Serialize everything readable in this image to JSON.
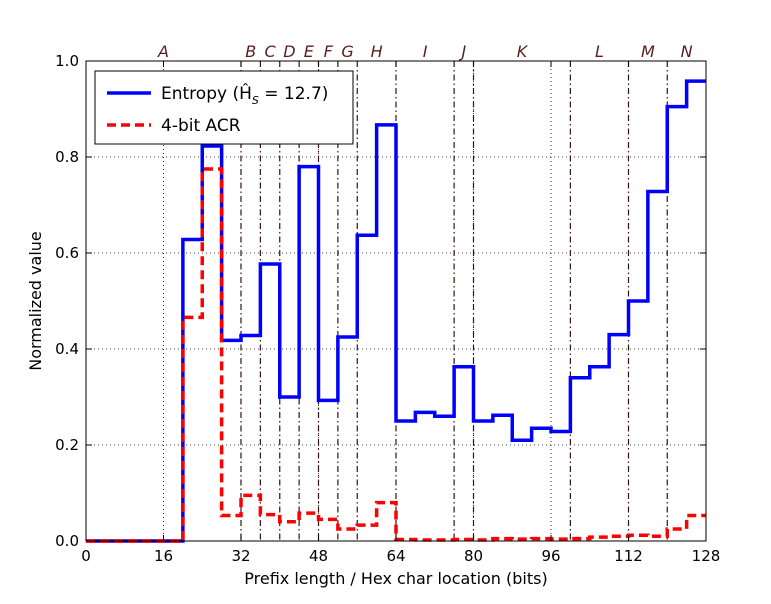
{
  "chart_data": {
    "type": "line",
    "title": "",
    "xlabel": "Prefix length / Hex char location (bits)",
    "ylabel": "Normalized value",
    "xlim": [
      0,
      128
    ],
    "ylim": [
      0,
      1.0
    ],
    "xticks": [
      0,
      16,
      32,
      48,
      64,
      80,
      96,
      112,
      128
    ],
    "yticks": [
      0.0,
      0.2,
      0.4,
      0.6,
      0.8,
      1.0
    ],
    "xtick_labels": [
      "0",
      "16",
      "32",
      "48",
      "64",
      "80",
      "96",
      "112",
      "128"
    ],
    "ytick_labels": [
      "0.0",
      "0.2",
      "0.4",
      "0.6",
      "0.8",
      "1.0"
    ],
    "grid_x": [
      16,
      48,
      80,
      96
    ],
    "grid_y": [
      0.2,
      0.4,
      0.6,
      0.8
    ],
    "grid": true,
    "legend_position": "top-left",
    "segment_boundaries": [
      32,
      36,
      40,
      44,
      48,
      52,
      56,
      64,
      76,
      80,
      100,
      112,
      120
    ],
    "segment_labels": [
      {
        "label": "A",
        "x": 16
      },
      {
        "label": "B",
        "x": 34
      },
      {
        "label": "C",
        "x": 38
      },
      {
        "label": "D",
        "x": 42
      },
      {
        "label": "E",
        "x": 46
      },
      {
        "label": "F",
        "x": 50
      },
      {
        "label": "G",
        "x": 54
      },
      {
        "label": "H",
        "x": 60
      },
      {
        "label": "I",
        "x": 70
      },
      {
        "label": "J",
        "x": 78
      },
      {
        "label": "K",
        "x": 90
      },
      {
        "label": "L",
        "x": 106
      },
      {
        "label": "M",
        "x": 116
      },
      {
        "label": "N",
        "x": 124
      }
    ],
    "series": [
      {
        "name": "Entropy",
        "legend_label": "Entropy (Ĥ",
        "legend_subscript": "S",
        "legend_suffix": " = 12.7)",
        "color": "#0000ff",
        "style": "solid",
        "step_edges": [
          0,
          4,
          8,
          12,
          16,
          20,
          24,
          28,
          32,
          36,
          40,
          44,
          48,
          52,
          56,
          60,
          64,
          68,
          72,
          76,
          80,
          84,
          88,
          92,
          96,
          100,
          104,
          108,
          112,
          116,
          120,
          124,
          128
        ],
        "values": [
          0,
          0,
          0,
          0,
          0,
          0.628,
          0.823,
          0.418,
          0.428,
          0.577,
          0.3,
          0.78,
          0.293,
          0.425,
          0.637,
          0.867,
          0.25,
          0.268,
          0.26,
          0.363,
          0.25,
          0.262,
          0.21,
          0.235,
          0.228,
          0.34,
          0.363,
          0.43,
          0.5,
          0.728,
          0.905,
          0.958
        ]
      },
      {
        "name": "4-bit ACR",
        "legend_label": "4-bit ACR",
        "color": "#ff0000",
        "style": "dashed",
        "step_edges": [
          0,
          4,
          8,
          12,
          16,
          20,
          24,
          28,
          32,
          36,
          40,
          44,
          48,
          52,
          56,
          60,
          64,
          68,
          72,
          76,
          80,
          84,
          88,
          92,
          96,
          100,
          104,
          108,
          112,
          116,
          120,
          124,
          128
        ],
        "values": [
          0,
          0,
          0,
          0,
          0,
          0.466,
          0.775,
          0.053,
          0.095,
          0.055,
          0.04,
          0.058,
          0.045,
          0.025,
          0.033,
          0.08,
          0.003,
          0.002,
          0.002,
          0.003,
          0.002,
          0.005,
          0.004,
          0.005,
          0.004,
          0.005,
          0.008,
          0.01,
          0.012,
          0.01,
          0.025,
          0.053
        ]
      }
    ]
  }
}
